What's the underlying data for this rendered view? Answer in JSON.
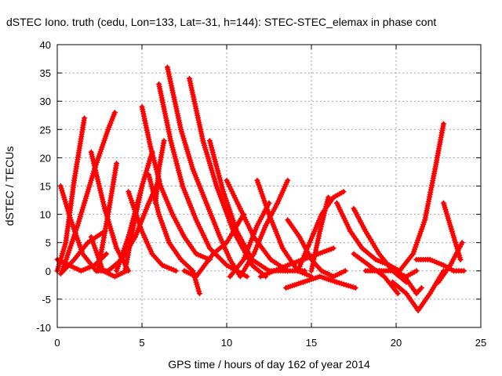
{
  "chart_data": {
    "type": "line",
    "title": "dSTEC Iono. truth (cedu, Lon=133, Lat=-31, h=144): STEC-STEC_elemax in phase cont",
    "xlabel": "GPS time / hours of day 162 of year 2014",
    "ylabel": "dSTEC  / TECUs",
    "xlim": [
      0,
      25
    ],
    "ylim": [
      -10,
      40
    ],
    "xticks": [
      0,
      5,
      10,
      15,
      20,
      25
    ],
    "yticks": [
      -10,
      -5,
      0,
      5,
      10,
      15,
      20,
      25,
      30,
      35,
      40
    ],
    "grid": true,
    "legend": "none",
    "color": "#ff0000",
    "marker": "plus",
    "series": [
      {
        "x": [
          0.0,
          0.5,
          1.0,
          1.6
        ],
        "y": [
          0,
          5,
          16,
          27
        ]
      },
      {
        "x": [
          0.2,
          0.8,
          1.5,
          2.3,
          3.0
        ],
        "y": [
          15,
          9,
          3,
          0,
          0
        ]
      },
      {
        "x": [
          0.0,
          0.7,
          1.4,
          2.2,
          2.9
        ],
        "y": [
          2,
          1,
          0,
          1,
          3
        ]
      },
      {
        "x": [
          0.2,
          1.0,
          1.8,
          2.8
        ],
        "y": [
          -0.5,
          2,
          5,
          7
        ]
      },
      {
        "x": [
          0.3,
          1.2,
          2.2,
          3.0,
          3.4
        ],
        "y": [
          0,
          8,
          18,
          25,
          28
        ]
      },
      {
        "x": [
          2.0,
          2.8,
          3.5,
          4.2
        ],
        "y": [
          21,
          11,
          4,
          0
        ]
      },
      {
        "x": [
          2.0,
          2.7,
          3.4,
          4.1
        ],
        "y": [
          6,
          0,
          -1,
          0
        ]
      },
      {
        "x": [
          2.4,
          3.0,
          3.5
        ],
        "y": [
          0,
          10,
          19
        ]
      },
      {
        "x": [
          3.0,
          3.8,
          4.6,
          5.4,
          6.0
        ],
        "y": [
          0,
          2,
          6,
          12,
          16
        ]
      },
      {
        "x": [
          3.5,
          4.2,
          5.0,
          5.6
        ],
        "y": [
          0,
          6,
          15,
          21
        ]
      },
      {
        "x": [
          4.0,
          4.5,
          5.0
        ],
        "y": [
          0,
          8,
          15
        ]
      },
      {
        "x": [
          4.2,
          5.0,
          5.6,
          6.2,
          7.0
        ],
        "y": [
          14,
          7,
          3,
          1,
          0
        ]
      },
      {
        "x": [
          5.0,
          5.5,
          6.1,
          6.8,
          7.5,
          8.2,
          9.0
        ],
        "y": [
          29,
          22,
          15,
          10,
          6,
          3,
          2
        ]
      },
      {
        "x": [
          5.4,
          6.0,
          6.6,
          7.3,
          8.0,
          8.4
        ],
        "y": [
          17,
          10,
          5,
          2,
          0,
          -4
        ]
      },
      {
        "x": [
          5.8,
          6.0,
          6.3
        ],
        "y": [
          12,
          18,
          23
        ]
      },
      {
        "x": [
          6.0,
          6.7,
          7.4,
          8.2,
          9.0,
          10.0,
          11.2
        ],
        "y": [
          33,
          23,
          15,
          9,
          4,
          1,
          -1
        ]
      },
      {
        "x": [
          6.5,
          7.3,
          8.0,
          8.8,
          9.6,
          10.2,
          10.8
        ],
        "y": [
          36,
          25,
          18,
          12,
          6,
          2,
          -1
        ]
      },
      {
        "x": [
          7.8,
          8.6,
          9.4,
          10.4,
          11.5,
          12.3
        ],
        "y": [
          34,
          23,
          15,
          7,
          1,
          -1
        ]
      },
      {
        "x": [
          7.5,
          8.2,
          8.7,
          9.2,
          10.0,
          10.6,
          11.0
        ],
        "y": [
          0,
          -1,
          1,
          3,
          5,
          8,
          10
        ]
      },
      {
        "x": [
          9.0,
          9.8,
          10.6,
          11.5,
          12.5,
          13.6
        ],
        "y": [
          23,
          14,
          7,
          2,
          0,
          0
        ]
      },
      {
        "x": [
          10.0,
          10.8,
          11.6,
          12.6,
          13.6,
          14.6
        ],
        "y": [
          16,
          11,
          6,
          2,
          0,
          0
        ]
      },
      {
        "x": [
          10.2,
          11.0,
          11.8,
          12.5
        ],
        "y": [
          -1,
          2,
          8,
          12
        ]
      },
      {
        "x": [
          11.0,
          11.6,
          12.3,
          13.0,
          13.6
        ],
        "y": [
          0,
          3,
          8,
          12,
          16
        ]
      },
      {
        "x": [
          11.8,
          12.5,
          13.3,
          14.2,
          15.0
        ],
        "y": [
          16,
          10,
          4,
          0,
          -1
        ]
      },
      {
        "x": [
          12.0,
          12.8,
          13.6,
          14.5,
          15.4,
          16.3
        ],
        "y": [
          -1,
          0,
          1,
          2,
          3,
          4
        ]
      },
      {
        "x": [
          13.5,
          14.5,
          15.5,
          16.5,
          17.6
        ],
        "y": [
          -3,
          -2,
          -1,
          -2,
          -3
        ]
      },
      {
        "x": [
          13.6,
          14.3,
          15.0,
          15.6,
          16.3,
          17.0
        ],
        "y": [
          9,
          6,
          2,
          0,
          -1,
          0
        ]
      },
      {
        "x": [
          14.2,
          14.9,
          15.6,
          16.3,
          16.9
        ],
        "y": [
          0,
          5,
          10,
          13,
          14
        ]
      },
      {
        "x": [
          15.0,
          15.5,
          16.0
        ],
        "y": [
          0,
          7,
          13
        ]
      },
      {
        "x": [
          16.5,
          17.3,
          18.0,
          18.8,
          19.6,
          20.2
        ],
        "y": [
          12,
          7,
          4,
          2,
          1,
          0
        ]
      },
      {
        "x": [
          17.5,
          18.2,
          19.0,
          19.8,
          20.6
        ],
        "y": [
          11,
          7,
          3,
          0,
          -2
        ]
      },
      {
        "x": [
          17.5,
          18.4,
          19.3,
          20.1
        ],
        "y": [
          3,
          1,
          -1,
          -4
        ]
      },
      {
        "x": [
          18.2,
          19.0,
          19.8,
          20.6,
          21.2
        ],
        "y": [
          0,
          0,
          0,
          -1,
          0
        ]
      },
      {
        "x": [
          19.8,
          20.6,
          21.3,
          22.0,
          22.8
        ],
        "y": [
          -2,
          -4,
          -7,
          -4,
          0
        ]
      },
      {
        "x": [
          20.2,
          21.0,
          21.7,
          22.3,
          22.8
        ],
        "y": [
          0,
          3,
          9,
          18,
          26
        ]
      },
      {
        "x": [
          20.5,
          21.2,
          21.5
        ],
        "y": [
          -1,
          -4,
          -3
        ]
      },
      {
        "x": [
          21.2,
          22.0,
          22.8,
          23.4,
          24.0
        ],
        "y": [
          2,
          2,
          1,
          0,
          0
        ]
      },
      {
        "x": [
          22.8,
          23.3,
          23.8
        ],
        "y": [
          12,
          7,
          2
        ]
      },
      {
        "x": [
          22.5,
          23.2,
          23.9
        ],
        "y": [
          -2,
          1,
          5
        ]
      }
    ]
  }
}
